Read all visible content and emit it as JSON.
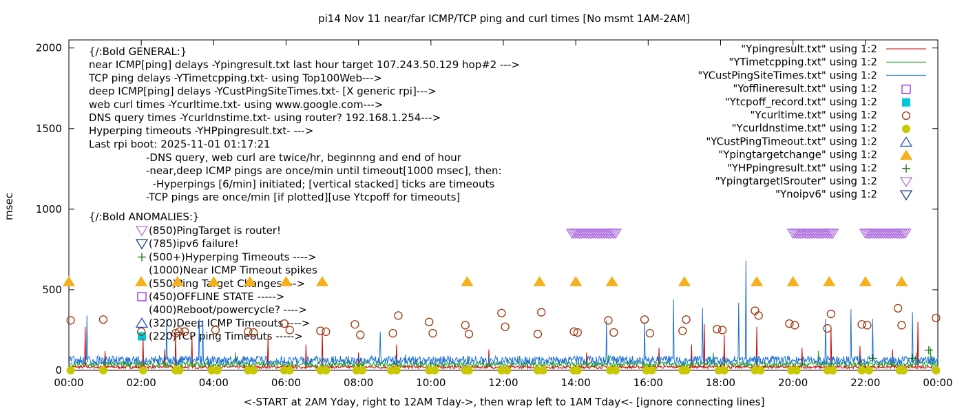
{
  "chart_data": {
    "type": "line",
    "title": "pi14 Nov 11  near/far ICMP/TCP ping and curl times [No msmt 1AM-2AM]",
    "xlabel": "<-START at 2AM Yday, right to 12AM Tday->, then wrap left to 1AM Tday<- [ignore connecting lines]",
    "ylabel": "msec",
    "xlim": [
      0,
      24
    ],
    "ylim": [
      0,
      2050
    ],
    "x_ticks": [
      "00:00",
      "02:00",
      "04:00",
      "06:00",
      "08:00",
      "10:00",
      "12:00",
      "14:00",
      "16:00",
      "18:00",
      "20:00",
      "22:00",
      "00:00"
    ],
    "y_ticks": [
      "0",
      "500",
      "1000",
      "1500",
      "2000"
    ],
    "legend_position": "top-right",
    "legend": [
      {
        "label": "\"Ypingresult.txt\" using 1:2",
        "kind": "line",
        "color": "#cc0000"
      },
      {
        "label": "\"YTimetcpping.txt\" using 1:2",
        "kind": "line",
        "color": "#1fa01f"
      },
      {
        "label": "\"YCustPingSiteTimes.txt\" using 1:2",
        "kind": "line",
        "color": "#1a6fd6"
      },
      {
        "label": "\"Yofflineresult.txt\" using 1:2",
        "kind": "open-square",
        "color": "#a020f0"
      },
      {
        "label": "\"Ytcpoff_record.txt\" using 1:2",
        "kind": "filled-square",
        "color": "#00c8d8"
      },
      {
        "label": "\"Ycurltime.txt\" using 1:2",
        "kind": "open-circle",
        "color": "#a0320a"
      },
      {
        "label": "\"Ycurldnstime.txt\" using 1:2",
        "kind": "filled-circle",
        "color": "#c8c800"
      },
      {
        "label": "\"YCustPingTimeout.txt\" using 1:2",
        "kind": "open-triangle-up",
        "color": "#1e50c8"
      },
      {
        "label": "\"Ypingtargetchange\" using 1:2",
        "kind": "filled-triangle-up",
        "color": "#f5b01e"
      },
      {
        "label": "\"YHPpingresult.txt\" using 1:2",
        "kind": "plus",
        "color": "#006400"
      },
      {
        "label": "\"YpingtargetISrouter\" using 1:2",
        "kind": "open-triangle-down",
        "color": "#b070e0"
      },
      {
        "label": "\"Ynoipv6\" using 1:2",
        "kind": "open-triangle-down",
        "color": "#1a3f7a"
      }
    ],
    "info_lines": [
      "{/:Bold GENERAL:}",
      "near ICMP[ping] delays -Ypingresult.txt last hour target 107.243.50.129 hop#2 --->",
      "TCP ping delays -YTimetcpping.txt- using Top100Web--->",
      "deep ICMP[ping] delays -YCustPingSiteTimes.txt- [X generic rpi]--->",
      "web curl times -Ycurltime.txt- using www.google.com--->",
      "DNS query times -Ycurldnstime.txt- using router? 192.168.1.254--->",
      "Hyperping timeouts -YHPpingresult.txt- --->",
      "Last rpi boot: 2025-11-01 01:17:21"
    ],
    "info_indented": [
      "-DNS query, web curl are twice/hr, beginnng and end of hour",
      "-near,deep ICMP pings are once/min until timeout[1000 msec], then:",
      "  -Hyperpings [6/min] initiated; [vertical stacked] ticks are timeouts",
      "-TCP pings are once/min [if plotted][use Ytcpoff for timeouts]"
    ],
    "anomalies_heading": "{/:Bold ANOMALIES:}",
    "anomalies": [
      {
        "text": "(850)PingTarget is router!",
        "marker": "open-triangle-down",
        "color": "#b070e0"
      },
      {
        "text": "(785)ipv6 failure!",
        "marker": "open-triangle-down",
        "color": "#1a3f7a"
      },
      {
        "text": "(500+)Hyperping Timeouts ---->",
        "marker": "plus",
        "color": "#006400"
      },
      {
        "text": "(1000)Near ICMP Timeout spikes",
        "marker": "none",
        "color": ""
      },
      {
        "text": "(550)Ping Target Changes --->",
        "marker": "none",
        "color": ""
      },
      {
        "text": "(450)OFFLINE STATE ----->",
        "marker": "open-square",
        "color": "#a020f0"
      },
      {
        "text": "(400)Reboot/powercycle? ---->",
        "marker": "none",
        "color": ""
      },
      {
        "text": "(320)Deep ICMP Timeouts ---->",
        "marker": "open-triangle-up",
        "color": "#1e50c8"
      },
      {
        "text": "(220)TCP ping Timeouts ----->",
        "marker": "filled-square",
        "color": "#00c8d8"
      }
    ],
    "series": [
      {
        "name": "\"Ypingtargetchange\" using 1:2",
        "kind": "filled-triangle-up",
        "color": "#f5b01e",
        "x": [
          0.0,
          2.0,
          3.0,
          4.0,
          5.0,
          6.0,
          7.0,
          11.0,
          13.0,
          14.0,
          15.0,
          17.0,
          19.0,
          20.0,
          21.0,
          22.0,
          23.0
        ],
        "y": [
          550,
          550,
          550,
          550,
          550,
          550,
          550,
          550,
          550,
          550,
          550,
          550,
          550,
          550,
          550,
          550,
          550
        ]
      },
      {
        "name": "\"YpingtargetISrouter\" using 1:2",
        "kind": "open-triangle-down",
        "color": "#b070e0",
        "x": [
          13.9,
          13.95,
          14.0,
          14.05,
          14.1,
          14.15,
          14.2,
          14.25,
          14.3,
          14.35,
          14.4,
          14.45,
          14.5,
          14.55,
          14.6,
          14.65,
          14.7,
          14.75,
          14.8,
          14.85,
          14.9,
          14.95,
          15.0,
          15.05,
          15.1,
          20.0,
          20.05,
          20.1,
          20.15,
          20.2,
          20.25,
          20.3,
          20.35,
          20.4,
          20.45,
          20.5,
          20.55,
          20.6,
          20.65,
          20.7,
          20.75,
          20.8,
          20.85,
          20.9,
          20.95,
          21.0,
          21.05,
          21.1,
          22.0,
          22.05,
          22.1,
          22.15,
          22.2,
          22.25,
          22.3,
          22.35,
          22.4,
          22.45,
          22.5,
          22.55,
          22.6,
          22.65,
          22.7,
          22.75,
          22.8,
          22.85,
          22.9,
          22.95,
          23.0,
          23.05,
          23.1
        ],
        "y": [
          850,
          850,
          850,
          850,
          850,
          850,
          850,
          850,
          850,
          850,
          850,
          850,
          850,
          850,
          850,
          850,
          850,
          850,
          850,
          850,
          850,
          850,
          850,
          850,
          850,
          850,
          850,
          850,
          850,
          850,
          850,
          850,
          850,
          850,
          850,
          850,
          850,
          850,
          850,
          850,
          850,
          850,
          850,
          850,
          850,
          850,
          850,
          850,
          850,
          850,
          850,
          850,
          850,
          850,
          850,
          850,
          850,
          850,
          850,
          850,
          850,
          850,
          850,
          850,
          850,
          850,
          850,
          850,
          850,
          850,
          850
        ]
      },
      {
        "name": "\"Ycurltime.txt\" using 1:2",
        "kind": "open-circle",
        "color": "#a0320a",
        "x": [
          0.05,
          0.95,
          2.0,
          2.95,
          3.05,
          3.2,
          4.05,
          4.95,
          5.1,
          5.95,
          6.1,
          6.95,
          7.1,
          7.9,
          8.05,
          8.95,
          9.1,
          9.95,
          10.05,
          10.95,
          11.05,
          11.95,
          12.05,
          12.95,
          13.05,
          13.95,
          14.05,
          14.9,
          15.05,
          15.9,
          16.05,
          16.95,
          17.05,
          17.9,
          18.05,
          18.95,
          19.05,
          19.9,
          20.05,
          20.95,
          21.05,
          21.9,
          22.05,
          22.9,
          23.0,
          23.95
        ],
        "y": [
          310,
          315,
          240,
          230,
          240,
          240,
          250,
          240,
          235,
          290,
          250,
          245,
          240,
          285,
          220,
          230,
          340,
          300,
          230,
          280,
          225,
          355,
          270,
          225,
          360,
          240,
          235,
          310,
          235,
          315,
          230,
          245,
          315,
          255,
          250,
          370,
          340,
          290,
          280,
          260,
          350,
          285,
          280,
          385,
          280,
          325
        ]
      },
      {
        "name": "\"Ycurldnstime.txt\" using 1:2",
        "kind": "filled-circle",
        "color": "#c8c800",
        "x": [
          0.05,
          0.95,
          2.05,
          2.95,
          3.05,
          3.95,
          4.1,
          4.95,
          5.1,
          5.95,
          6.1,
          6.95,
          7.1,
          7.95,
          8.1,
          8.9,
          9.05,
          9.95,
          10.1,
          10.95,
          11.05,
          11.95,
          12.1,
          12.95,
          13.1,
          13.95,
          14.05,
          14.95,
          15.1,
          15.95,
          16.1,
          16.95,
          17.05,
          17.95,
          18.1,
          18.95,
          19.1,
          19.95,
          20.1,
          20.95,
          21.1,
          21.9,
          22.1,
          22.95,
          23.05,
          23.95
        ],
        "y": [
          0,
          0,
          0,
          0,
          0,
          0,
          0,
          0,
          0,
          0,
          0,
          0,
          0,
          0,
          0,
          0,
          0,
          0,
          0,
          0,
          0,
          0,
          0,
          0,
          0,
          0,
          0,
          0,
          0,
          0,
          0,
          0,
          0,
          0,
          0,
          0,
          0,
          0,
          0,
          0,
          0,
          0,
          0,
          0,
          0,
          0
        ]
      },
      {
        "name": "\"YHPpingresult.txt\" using 1:2",
        "kind": "plus",
        "color": "#006400",
        "x": [
          22.2,
          23.3,
          23.75
        ],
        "y": [
          75,
          75,
          125
        ]
      },
      {
        "name": "\"Ypingresult.txt\" using 1:2",
        "kind": "line",
        "color": "#cc0000",
        "baseline": 20,
        "spikes_x": [
          0.45,
          1.0,
          2.05,
          2.65,
          2.95,
          3.4,
          5.5,
          6.55,
          7.0,
          8.0,
          9.05,
          11.6,
          14.3,
          16.3,
          17.2,
          17.55,
          18.1,
          19.0,
          20.25,
          21.05,
          21.85,
          22.75,
          23.45
        ],
        "spikes_y": [
          270,
          120,
          200,
          130,
          230,
          210,
          210,
          160,
          230,
          110,
          160,
          130,
          110,
          140,
          160,
          290,
          220,
          270,
          140,
          260,
          150,
          130,
          300
        ]
      },
      {
        "name": "\"YTimetcpping.txt\" using 1:2",
        "kind": "line",
        "color": "#1fa01f",
        "baseline": 38,
        "spikes_x": [
          4.6,
          9.3,
          12.4,
          14.9,
          17.8,
          20.7,
          23.4,
          23.8
        ],
        "spikes_y": [
          110,
          100,
          90,
          95,
          110,
          120,
          110,
          140
        ]
      },
      {
        "name": "\"YCustPingSiteTimes.txt\" using 1:2",
        "kind": "line",
        "color": "#1a6fd6",
        "baseline": 62,
        "spikes_x": [
          0.5,
          2.7,
          3.6,
          3.7,
          8.6,
          14.85,
          15.9,
          16.7,
          17.5,
          18.5,
          18.7,
          20.9,
          21.6,
          22.2,
          23.3
        ],
        "spikes_y": [
          340,
          320,
          320,
          310,
          240,
          310,
          300,
          440,
          390,
          420,
          680,
          320,
          380,
          320,
          360
        ]
      }
    ]
  }
}
